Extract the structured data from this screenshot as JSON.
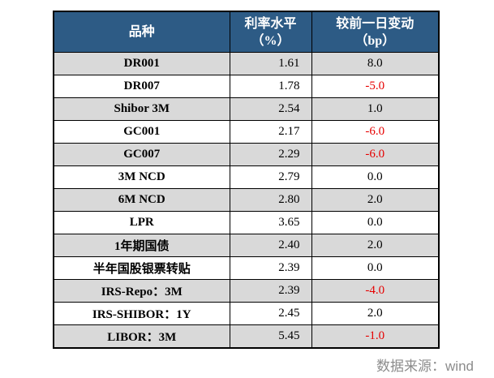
{
  "table": {
    "columns": [
      {
        "line1": "品种",
        "line2": ""
      },
      {
        "line1": "利率水平",
        "line2": "（%）"
      },
      {
        "line1": "较前一日变动",
        "line2": "（bp）"
      }
    ],
    "rows": [
      {
        "name": "DR001",
        "rate": "1.61",
        "change": "8.0"
      },
      {
        "name": "DR007",
        "rate": "1.78",
        "change": "-5.0"
      },
      {
        "name": "Shibor 3M",
        "rate": "2.54",
        "change": "1.0"
      },
      {
        "name": "GC001",
        "rate": "2.17",
        "change": "-6.0"
      },
      {
        "name": "GC007",
        "rate": "2.29",
        "change": "-6.0"
      },
      {
        "name": "3M NCD",
        "rate": "2.79",
        "change": "0.0"
      },
      {
        "name": "6M NCD",
        "rate": "2.80",
        "change": "2.0"
      },
      {
        "name": "LPR",
        "rate": "3.65",
        "change": "0.0"
      },
      {
        "name": "1年期国债",
        "rate": "2.40",
        "change": "2.0"
      },
      {
        "name": "半年国股银票转贴",
        "rate": "2.39",
        "change": "0.0"
      },
      {
        "name": "IRS-Repo：3M",
        "rate": "2.39",
        "change": "-4.0"
      },
      {
        "name": "IRS-SHIBOR：1Y",
        "rate": "2.45",
        "change": "2.0"
      },
      {
        "name": "LIBOR：3M",
        "rate": "5.45",
        "change": "-1.0"
      }
    ]
  },
  "footer": {
    "source_label": "数据来源：wind"
  },
  "colors": {
    "header_bg": "#2D5B85",
    "row_alt_bg": "#D9D9D9",
    "negative": "#E60000",
    "footer_text": "#8C8C8C"
  },
  "chart_data": {
    "type": "table",
    "title": "",
    "columns": [
      "品种",
      "利率水平（%）",
      "较前一日变动（bp）"
    ],
    "rows": [
      [
        "DR001",
        1.61,
        8.0
      ],
      [
        "DR007",
        1.78,
        -5.0
      ],
      [
        "Shibor 3M",
        2.54,
        1.0
      ],
      [
        "GC001",
        2.17,
        -6.0
      ],
      [
        "GC007",
        2.29,
        -6.0
      ],
      [
        "3M NCD",
        2.79,
        0.0
      ],
      [
        "6M NCD",
        2.8,
        2.0
      ],
      [
        "LPR",
        3.65,
        0.0
      ],
      [
        "1年期国债",
        2.4,
        2.0
      ],
      [
        "半年国股银票转贴",
        2.39,
        0.0
      ],
      [
        "IRS-Repo：3M",
        2.39,
        -4.0
      ],
      [
        "IRS-SHIBOR：1Y",
        2.45,
        2.0
      ],
      [
        "LIBOR：3M",
        5.45,
        -1.0
      ]
    ],
    "source": "数据来源：wind",
    "layout_hints": {
      "header_style": "dark-blue-white-bold",
      "zebra_striping": true,
      "negative_values_red": true
    }
  }
}
